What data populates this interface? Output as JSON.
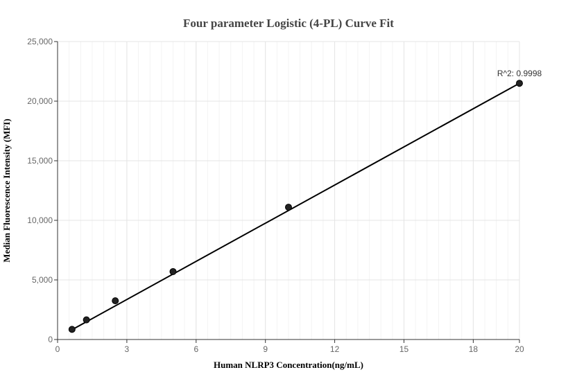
{
  "chart_data": {
    "type": "scatter",
    "title": "Four parameter Logistic (4-PL) Curve Fit",
    "xlabel": "Human NLRP3 Concentration(ng/mL)",
    "ylabel": "Median Fluorescence Intensity (MFI)",
    "xlim": [
      0,
      20
    ],
    "ylim": [
      0,
      25000
    ],
    "x_ticks": [
      0,
      3,
      6,
      9,
      12,
      15,
      18,
      20
    ],
    "x_tick_labels": [
      "0",
      "3",
      "6",
      "9",
      "12",
      "15",
      "18",
      "20"
    ],
    "y_ticks": [
      0,
      5000,
      10000,
      15000,
      20000,
      25000
    ],
    "y_tick_labels": [
      "0",
      "5,000",
      "10,000",
      "15,000",
      "20,000",
      "25,000"
    ],
    "grid": true,
    "series": [
      {
        "x": [
          0.625,
          1.25,
          2.5,
          5,
          10,
          20
        ],
        "values": [
          850,
          1650,
          3250,
          5700,
          11100,
          21500
        ]
      }
    ],
    "fit_line": {
      "x": [
        0.625,
        20
      ],
      "values": [
        820,
        21500
      ]
    },
    "annotation": "R^2: 0.9998",
    "colors": {
      "points": "#222222",
      "fit_line": "#000000",
      "grid": "#e4e4e4"
    }
  }
}
